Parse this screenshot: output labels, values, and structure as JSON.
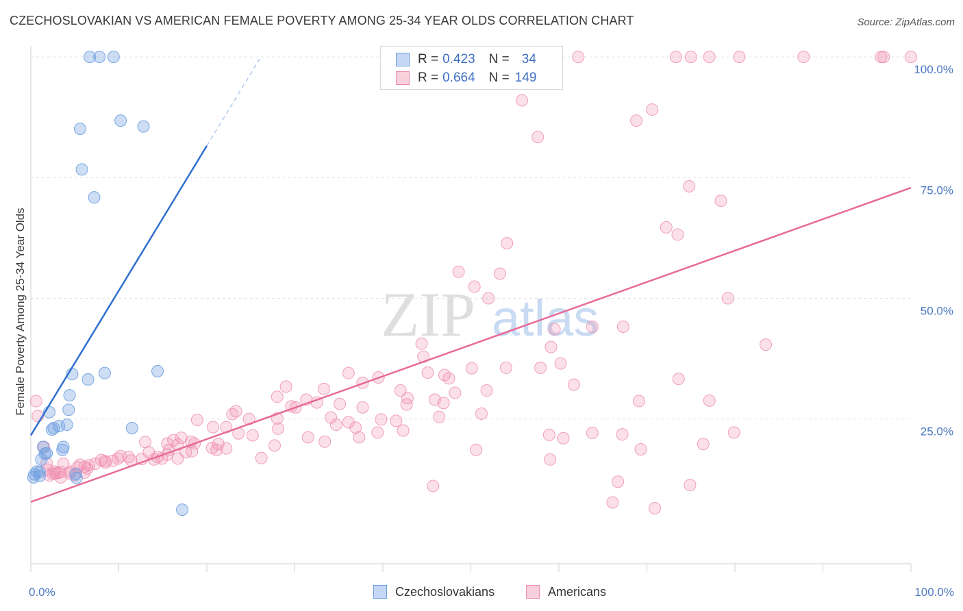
{
  "title": "CZECHOSLOVAKIAN VS AMERICAN FEMALE POVERTY AMONG 25-34 YEAR OLDS CORRELATION CHART",
  "source": "Source: ZipAtlas.com",
  "watermark": {
    "zip": "ZIP",
    "atlas": "atlas"
  },
  "legend": {
    "rows": [
      {
        "r_label": "R =",
        "r_value": "0.423",
        "n_label": "N =",
        "n_value": "34"
      },
      {
        "r_label": "R =",
        "r_value": "0.664",
        "n_label": "N =",
        "n_value": "149"
      }
    ]
  },
  "bottom_legend": [
    "Czechoslovakians",
    "Americans"
  ],
  "chart_data": {
    "type": "scatter",
    "title": "CZECHOSLOVAKIAN VS AMERICAN FEMALE POVERTY AMONG 25-34 YEAR OLDS CORRELATION CHART",
    "xlabel": "",
    "ylabel": "Female Poverty Among 25-34 Year Olds",
    "xlim": [
      0,
      100
    ],
    "ylim": [
      -5,
      103
    ],
    "x_ticks": [
      {
        "value": 0,
        "label": "0.0%"
      },
      {
        "value": 100,
        "label": "100.0%"
      }
    ],
    "y_ticks": [
      {
        "value": 25,
        "label": "25.0%"
      },
      {
        "value": 50,
        "label": "50.0%"
      },
      {
        "value": 75,
        "label": "75.0%"
      },
      {
        "value": 100,
        "label": "100.0%"
      }
    ],
    "colors": {
      "czech": "#6e9fe0",
      "american": "#ef8fb0",
      "czech_line": "#2f6fcf",
      "american_line": "#e66a98"
    },
    "series": [
      {
        "name": "Czechoslovakians",
        "r": 0.423,
        "n": 34,
        "trend": {
          "x0": 0,
          "y0": 21.6,
          "x1": 20,
          "y1": 81.6,
          "dash_to_x": 26,
          "dash_to_y": 99.6
        },
        "points": [
          [
            6.7,
            100
          ],
          [
            7.8,
            100
          ],
          [
            9.4,
            100
          ],
          [
            10.2,
            86.8
          ],
          [
            12.8,
            85.6
          ],
          [
            5.6,
            85.1
          ],
          [
            5.8,
            76.7
          ],
          [
            7.2,
            70.9
          ],
          [
            14.4,
            34.9
          ],
          [
            8.4,
            34.5
          ],
          [
            4.7,
            34.3
          ],
          [
            6.5,
            33.2
          ],
          [
            4.4,
            29.9
          ],
          [
            4.3,
            26.9
          ],
          [
            2.1,
            26.4
          ],
          [
            4.1,
            23.8
          ],
          [
            3.2,
            23.5
          ],
          [
            2.6,
            23.1
          ],
          [
            11.5,
            23.1
          ],
          [
            2.4,
            22.8
          ],
          [
            3.7,
            19.2
          ],
          [
            1.4,
            19.2
          ],
          [
            3.6,
            18.6
          ],
          [
            1.8,
            17.9
          ],
          [
            1.6,
            17.8
          ],
          [
            1.2,
            16.6
          ],
          [
            0.7,
            14.1
          ],
          [
            1.0,
            14.0
          ],
          [
            0.4,
            13.5
          ],
          [
            1.0,
            13.2
          ],
          [
            0.3,
            12.9
          ],
          [
            5.2,
            12.8
          ],
          [
            5.1,
            13.6
          ],
          [
            17.2,
            6.2
          ]
        ]
      },
      {
        "name": "Americans",
        "r": 0.664,
        "n": 149,
        "trend": {
          "x0": 0,
          "y0": 7.8,
          "x1": 100,
          "y1": 72.9
        },
        "points": [
          [
            62.2,
            100
          ],
          [
            73.3,
            100
          ],
          [
            75.0,
            100
          ],
          [
            77.1,
            100
          ],
          [
            80.5,
            100
          ],
          [
            96.6,
            100
          ],
          [
            96.9,
            100
          ],
          [
            100,
            100
          ],
          [
            87.8,
            100
          ],
          [
            55.8,
            91.0
          ],
          [
            70.6,
            89.1
          ],
          [
            68.8,
            86.8
          ],
          [
            57.6,
            83.4
          ],
          [
            74.8,
            73.2
          ],
          [
            78.4,
            70.2
          ],
          [
            72.2,
            64.7
          ],
          [
            73.5,
            63.2
          ],
          [
            54.1,
            61.4
          ],
          [
            48.6,
            55.5
          ],
          [
            53.3,
            55.1
          ],
          [
            50.4,
            52.4
          ],
          [
            52.0,
            50.0
          ],
          [
            79.2,
            50.0
          ],
          [
            59.5,
            43.6
          ],
          [
            63.8,
            44.1
          ],
          [
            67.3,
            44.1
          ],
          [
            83.5,
            40.4
          ],
          [
            44.4,
            40.6
          ],
          [
            59.1,
            39.9
          ],
          [
            44.6,
            37.9
          ],
          [
            60.2,
            36.5
          ],
          [
            54.0,
            35.6
          ],
          [
            57.9,
            35.6
          ],
          [
            50.1,
            35.5
          ],
          [
            45.1,
            34.6
          ],
          [
            36.1,
            34.5
          ],
          [
            39.5,
            33.6
          ],
          [
            47.5,
            33.4
          ],
          [
            73.6,
            33.3
          ],
          [
            37.7,
            32.5
          ],
          [
            61.7,
            32.1
          ],
          [
            29.0,
            31.7
          ],
          [
            33.3,
            31.2
          ],
          [
            42.0,
            30.9
          ],
          [
            51.8,
            30.9
          ],
          [
            48.2,
            30.4
          ],
          [
            28.0,
            29.6
          ],
          [
            31.3,
            29.0
          ],
          [
            45.9,
            29.0
          ],
          [
            46.9,
            28.3
          ],
          [
            69.1,
            28.7
          ],
          [
            77.1,
            28.8
          ],
          [
            32.5,
            28.4
          ],
          [
            35.1,
            28.1
          ],
          [
            42.7,
            28.0
          ],
          [
            37.7,
            27.4
          ],
          [
            29.6,
            27.6
          ],
          [
            30.1,
            27.4
          ],
          [
            23.3,
            26.6
          ],
          [
            22.9,
            26.0
          ],
          [
            51.2,
            26.1
          ],
          [
            34.1,
            25.3
          ],
          [
            46.4,
            25.4
          ],
          [
            28.0,
            25.1
          ],
          [
            24.8,
            25.0
          ],
          [
            39.8,
            24.9
          ],
          [
            18.9,
            24.8
          ],
          [
            41.5,
            24.6
          ],
          [
            36.1,
            24.3
          ],
          [
            34.7,
            23.8
          ],
          [
            20.7,
            23.3
          ],
          [
            22.2,
            23.3
          ],
          [
            36.9,
            23.2
          ],
          [
            28.1,
            23.0
          ],
          [
            42.3,
            22.6
          ],
          [
            63.8,
            22.1
          ],
          [
            58.9,
            21.7
          ],
          [
            67.2,
            21.8
          ],
          [
            25.2,
            21.6
          ],
          [
            31.5,
            21.2
          ],
          [
            37.3,
            21.2
          ],
          [
            17.1,
            21.1
          ],
          [
            60.5,
            21.0
          ],
          [
            16.2,
            20.6
          ],
          [
            18.2,
            20.3
          ],
          [
            33.4,
            20.3
          ],
          [
            13.0,
            20.2
          ],
          [
            16.7,
            19.7
          ],
          [
            15.5,
            19.9
          ],
          [
            18.6,
            19.9
          ],
          [
            21.3,
            19.8
          ],
          [
            27.7,
            19.5
          ],
          [
            20.6,
            19.0
          ],
          [
            22.2,
            18.9
          ],
          [
            21.1,
            18.6
          ],
          [
            50.6,
            18.6
          ],
          [
            59.0,
            16.6
          ],
          [
            69.3,
            18.7
          ],
          [
            76.4,
            19.8
          ],
          [
            79.9,
            22.2
          ],
          [
            74.9,
            11.3
          ],
          [
            66.7,
            12.0
          ],
          [
            70.9,
            6.5
          ],
          [
            66.1,
            7.7
          ],
          [
            45.7,
            11.1
          ],
          [
            18.3,
            18.3
          ],
          [
            17.6,
            18.1
          ],
          [
            15.5,
            17.6
          ],
          [
            16.7,
            16.8
          ],
          [
            14.4,
            17.1
          ],
          [
            14.0,
            16.6
          ],
          [
            12.6,
            16.7
          ],
          [
            11.1,
            17.1
          ],
          [
            10.2,
            17.3
          ],
          [
            9.3,
            16.3
          ],
          [
            9.9,
            16.8
          ],
          [
            8.4,
            16.3
          ],
          [
            8.0,
            16.5
          ],
          [
            7.3,
            15.7
          ],
          [
            6.6,
            15.4
          ],
          [
            5.6,
            15.5
          ],
          [
            6.1,
            15.1
          ],
          [
            5.3,
            15.0
          ],
          [
            3.7,
            15.7
          ],
          [
            2.7,
            14.1
          ],
          [
            1.9,
            14.5
          ],
          [
            1.8,
            15.8
          ],
          [
            3.4,
            14.0
          ],
          [
            2.8,
            13.7
          ],
          [
            4.5,
            14.1
          ],
          [
            3.1,
            13.8
          ],
          [
            2.5,
            13.6
          ],
          [
            5.0,
            13.4
          ],
          [
            6.1,
            13.9
          ],
          [
            4.4,
            13.7
          ],
          [
            3.4,
            12.9
          ],
          [
            2.1,
            13.3
          ],
          [
            13.4,
            18.1
          ],
          [
            14.9,
            16.8
          ],
          [
            11.4,
            16.4
          ],
          [
            6.4,
            14.7
          ],
          [
            8.5,
            16.0
          ],
          [
            26.2,
            16.9
          ],
          [
            23.6,
            22.0
          ],
          [
            0.6,
            28.7
          ],
          [
            0.8,
            25.6
          ],
          [
            1.5,
            19.2
          ],
          [
            15.7,
            18.6
          ],
          [
            39.4,
            22.2
          ],
          [
            42.8,
            29.3
          ],
          [
            47.0,
            34.1
          ]
        ]
      }
    ]
  }
}
